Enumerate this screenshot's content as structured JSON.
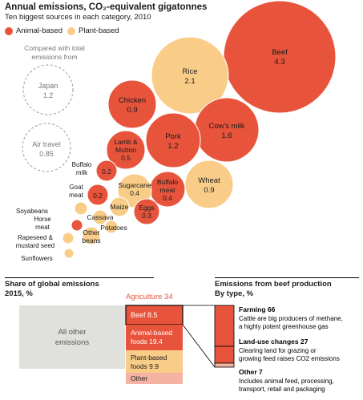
{
  "header": {
    "title": "Annual emissions, CO₂-equivalent gigatonnes",
    "subtitle": "Ten biggest sources in each category, 2010"
  },
  "legend": [
    {
      "label": "Animal-based",
      "color": "#e8543b"
    },
    {
      "label": "Plant-based",
      "color": "#f9cd88"
    }
  ],
  "comparison": {
    "label_line1": "Compared with total",
    "label_line2": "emissions from",
    "items": [
      {
        "name": "Japan",
        "value": "1.2"
      },
      {
        "name": "Air travel",
        "value": "0.85"
      }
    ]
  },
  "chart_data": [
    {
      "type": "bubble",
      "title": "Annual emissions, CO₂-equivalent gigatonnes",
      "subtitle": "Ten biggest sources in each category, 2010",
      "series": [
        {
          "name": "Animal-based",
          "color": "#e8543b"
        },
        {
          "name": "Plant-based",
          "color": "#f9cd88"
        }
      ],
      "points": [
        {
          "label": "Beef",
          "value": 4.3,
          "display": "4.3",
          "category": "Animal-based"
        },
        {
          "label": "Rice",
          "value": 2.1,
          "display": "2.1",
          "category": "Plant-based"
        },
        {
          "label": "Cow's milk",
          "value": 1.6,
          "display": "1.6",
          "category": "Animal-based"
        },
        {
          "label": "Pork",
          "value": 1.2,
          "display": "1.2",
          "category": "Animal-based"
        },
        {
          "label": "Chicken",
          "value": 0.9,
          "display": "0.9",
          "category": "Animal-based"
        },
        {
          "label": "Wheat",
          "value": 0.9,
          "display": "0.9",
          "category": "Plant-based"
        },
        {
          "label": "Lamb & Mutton",
          "value": 0.5,
          "display": "0.5",
          "category": "Animal-based"
        },
        {
          "label": "Buffalo meat",
          "value": 0.4,
          "display": "0.4",
          "category": "Animal-based"
        },
        {
          "label": "Sugarcane",
          "value": 0.4,
          "display": "0.4",
          "category": "Plant-based"
        },
        {
          "label": "Eggs",
          "value": 0.3,
          "display": "0.3",
          "category": "Animal-based"
        },
        {
          "label": "Buffalo milk",
          "value": 0.2,
          "display": "0.2",
          "category": "Animal-based"
        },
        {
          "label": "Goat meat",
          "value": 0.2,
          "display": "0.2",
          "category": "Animal-based"
        },
        {
          "label": "Maize",
          "value": 0.18,
          "category": "Plant-based"
        },
        {
          "label": "Cassava",
          "value": 0.1,
          "category": "Plant-based"
        },
        {
          "label": "Potatoes",
          "value": 0.09,
          "category": "Plant-based"
        },
        {
          "label": "Other beans",
          "value": 0.12,
          "category": "Plant-based"
        },
        {
          "label": "Soyabeans",
          "value": 0.07,
          "category": "Plant-based"
        },
        {
          "label": "Horse meat",
          "value": 0.06,
          "category": "Animal-based"
        },
        {
          "label": "Rapeseed & mustard seed",
          "value": 0.06,
          "category": "Plant-based"
        },
        {
          "label": "Sunflowers",
          "value": 0.05,
          "category": "Plant-based"
        }
      ]
    },
    {
      "type": "stacked-bar",
      "title": "Share of global emissions",
      "subtitle": "2015, %",
      "segments": [
        {
          "label": "All other emissions",
          "value": 66,
          "color": "#e0e0dd"
        },
        {
          "label": "Agriculture",
          "value": 34,
          "color": "#e8543b",
          "breakdown": [
            {
              "label": "Beef",
              "value": 8.5,
              "display": "8.5",
              "color": "#e8543b"
            },
            {
              "label": "Animal-based foods",
              "value": 19.4,
              "display": "19.4",
              "color": "#e8543b"
            },
            {
              "label": "Plant-based foods",
              "value": 9.9,
              "display": "9.9",
              "color": "#f9cd88"
            },
            {
              "label": "Other",
              "value": 3,
              "color": "#f5b3a3"
            }
          ]
        }
      ]
    },
    {
      "type": "stacked-bar",
      "title": "Emissions from beef production",
      "subtitle": "By type, %",
      "segments": [
        {
          "label": "Farming",
          "value": 66,
          "display": "66",
          "color": "#e8543b",
          "note": "Cattle are big producers of methane, a highly potent greenhouse gas"
        },
        {
          "label": "Land-use changes",
          "value": 27,
          "display": "27",
          "color": "#e8543b",
          "note": "Clearing land for grazing or growing feed raises CO2 emissions"
        },
        {
          "label": "Other",
          "value": 7,
          "display": "7",
          "color": "#f5b3a3",
          "note": "Includes animal feed, processing, transport, retail and packaging"
        }
      ]
    }
  ],
  "share": {
    "title": "Share of global emissions",
    "subtitle": "2015, %",
    "agriculture_label": "Agriculture 34",
    "all_other_line1": "All other",
    "all_other_line2": "emissions",
    "beef_label": "Beef 8.5",
    "animal_line1": "Animal-based",
    "animal_line2": "foods 19.4",
    "plant_line1": "Plant-based",
    "plant_line2": "foods 9.9",
    "other_label": "Other"
  },
  "beef": {
    "title": "Emissions from beef production",
    "subtitle": "By type, %",
    "farming_title": "Farming 66",
    "farming_line1": "Cattle are big producers of methane,",
    "farming_line2": "a highly potent greenhouse gas",
    "land_title": "Land-use changes 27",
    "land_line1": "Clearing land for grazing or",
    "land_line2": "growing feed raises CO2 emissions",
    "other_title": "Other 7",
    "other_line1": "Includes animal feed, processing,",
    "other_line2": "transport, retail and packaging"
  }
}
